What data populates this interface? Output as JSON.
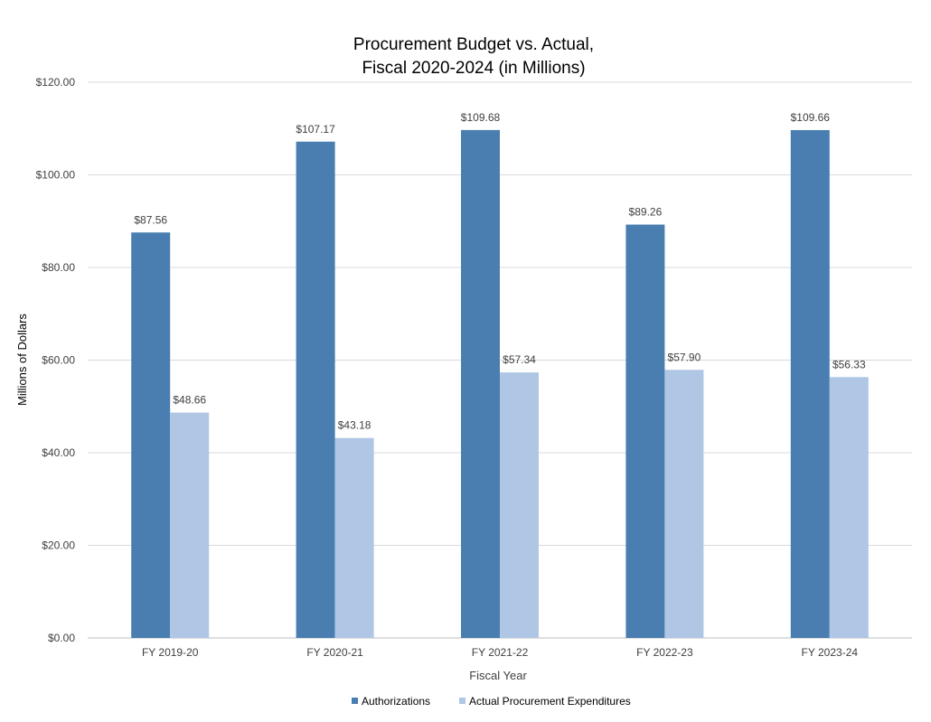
{
  "chart_data": {
    "type": "bar",
    "title_lines": [
      "Procurement Budget vs. Actual,",
      "Fiscal 2020-2024 (in Millions)"
    ],
    "xlabel": "Fiscal Year",
    "ylabel": "Millions of Dollars",
    "categories": [
      "FY 2019-20",
      "FY 2020-21",
      "FY 2021-22",
      "FY 2022-23",
      "FY 2023-24"
    ],
    "ylim": [
      0,
      120
    ],
    "yticks": [
      0,
      20,
      40,
      60,
      80,
      100,
      120
    ],
    "ytick_labels": [
      "$0.00",
      "$20.00",
      "$40.00",
      "$60.00",
      "$80.00",
      "$100.00",
      "$120.00"
    ],
    "grid": true,
    "legend_position": "bottom",
    "series": [
      {
        "name": "Authorizations",
        "color": "#4a7eb0",
        "values": [
          87.56,
          107.17,
          109.68,
          89.26,
          109.66
        ],
        "labels": [
          "$87.56",
          "$107.17",
          "$109.68",
          "$89.26",
          "$109.66"
        ]
      },
      {
        "name": "Actual Procurement Expenditures",
        "color": "#afc6e4",
        "values": [
          48.66,
          43.18,
          57.34,
          57.9,
          56.33
        ],
        "labels": [
          "$48.66",
          "$43.18",
          "$57.34",
          "$57.90",
          "$56.33"
        ]
      }
    ],
    "gridline_color": "#d9d9d9"
  }
}
